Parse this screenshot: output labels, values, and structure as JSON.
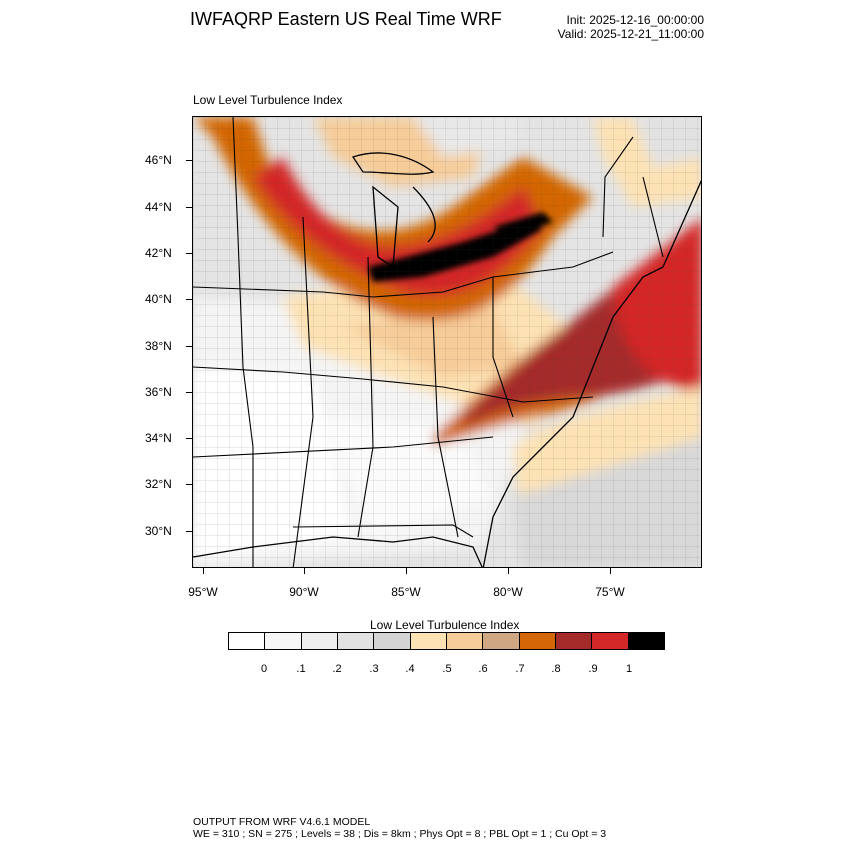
{
  "header": {
    "title": "IWFAQRP Eastern US Real Time WRF",
    "init": "Init: 2025-12-16_00:00:00",
    "valid": "Valid: 2025-12-21_11:00:00"
  },
  "panel": {
    "title": "Low Level Turbulence Index",
    "field": "Low Level Turbulence Index",
    "lat_labels": [
      "46°N",
      "44°N",
      "42°N",
      "40°N",
      "38°N",
      "36°N",
      "34°N",
      "32°N",
      "30°N"
    ],
    "lon_labels": [
      "95°W",
      "90°W",
      "85°W",
      "80°W",
      "75°W"
    ]
  },
  "colorbar": {
    "title": "Low Level Turbulence Index",
    "labels": [
      "0",
      ".1",
      ".2",
      ".3",
      ".4",
      ".5",
      ".6",
      ".7",
      ".8",
      ".9",
      "1"
    ],
    "colors": [
      "#ffffff",
      "#f7f7f7",
      "#eeeeee",
      "#e2e2e2",
      "#d4d4d4",
      "#fde2b4",
      "#f6cc99",
      "#cfa883",
      "#d36606",
      "#a52a2a",
      "#d42727",
      "#000000"
    ]
  },
  "footer": {
    "line1": "OUTPUT FROM WRF V4.6.1 MODEL",
    "line2": "WE = 310 ; SN = 275 ; Levels = 38 ; Dis = 8km ; Phys Opt = 8 ; PBL Opt = 1 ; Cu Opt = 3"
  }
}
